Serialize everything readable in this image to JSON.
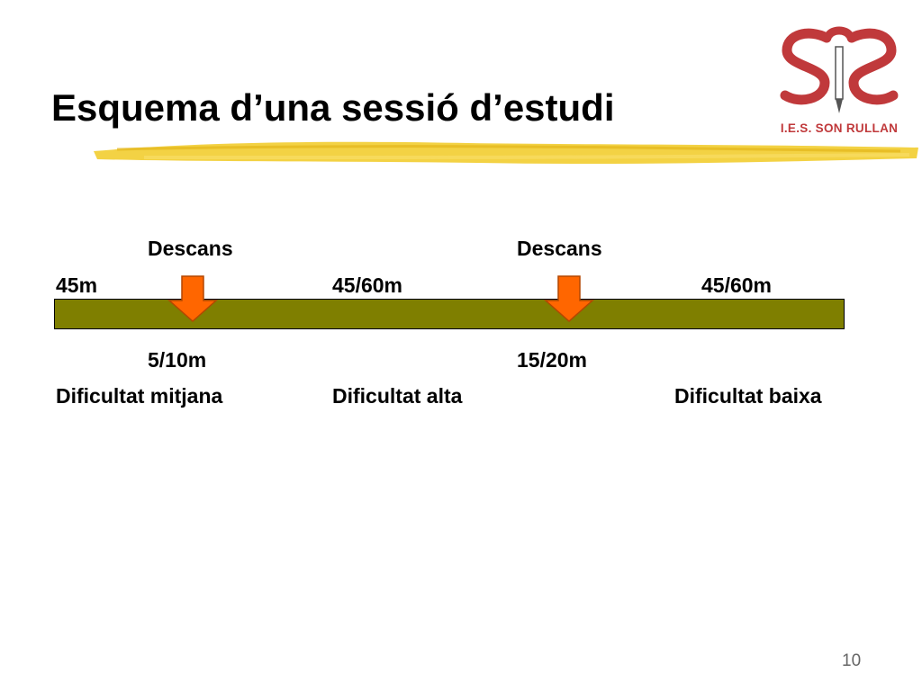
{
  "slide": {
    "title": "Esquema d’una sessió d’estudi",
    "page_number": "10"
  },
  "logo": {
    "monogram": "SR",
    "text": "I.E.S. SON RULLAN",
    "color": "#c0393b"
  },
  "timeline": {
    "bar_color": "#7f7f00",
    "arrow_color": "#ff6600",
    "arrow_dark": "#b34700",
    "underline_color": "#f2cd30",
    "study_blocks": [
      {
        "duration": "45m",
        "difficulty": "Dificultat mitjana"
      },
      {
        "duration": "45/60m",
        "difficulty": "Dificultat alta"
      },
      {
        "duration": "45/60m",
        "difficulty": "Dificultat baixa"
      }
    ],
    "breaks": [
      {
        "label": "Descans",
        "duration": "5/10m"
      },
      {
        "label": "Descans",
        "duration": "15/20m"
      }
    ]
  }
}
